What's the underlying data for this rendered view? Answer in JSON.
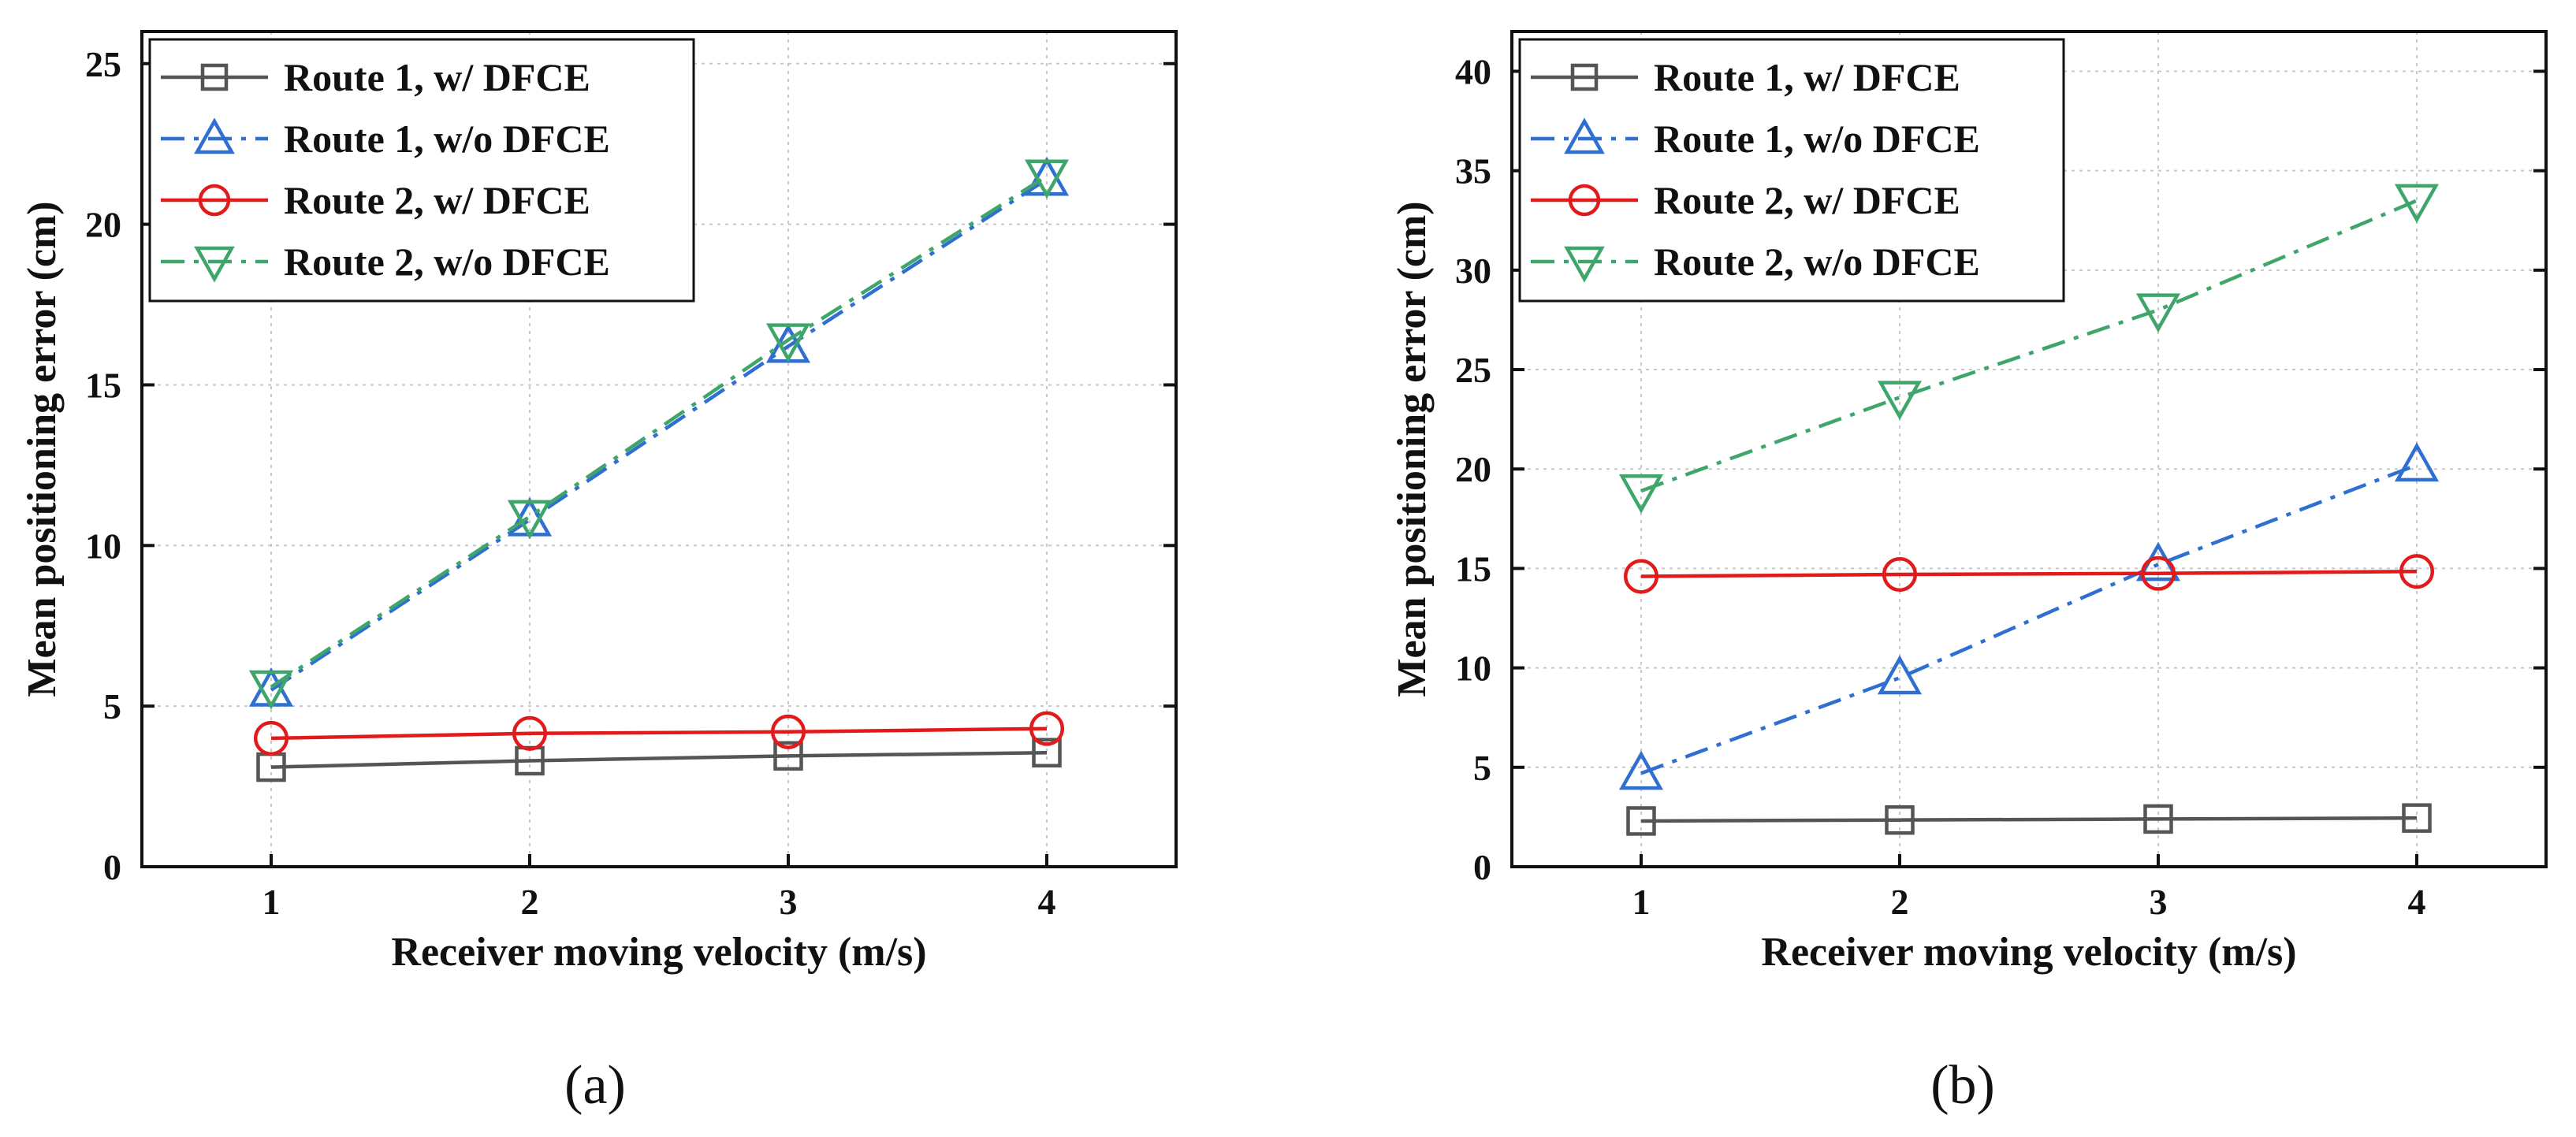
{
  "chart_data": [
    {
      "type": "line",
      "panel_label": "(a)",
      "xlabel": "Receiver moving velocity (m/s)",
      "ylabel": "Mean positioning error (cm)",
      "x": [
        1,
        2,
        3,
        4
      ],
      "xlim": [
        0.5,
        4.5
      ],
      "ylim": [
        0,
        26
      ],
      "xticks": [
        1,
        2,
        3,
        4
      ],
      "yticks": [
        0,
        5,
        10,
        15,
        20,
        25
      ],
      "grid": true,
      "legend_position": "top-left",
      "series": [
        {
          "name": "Route 1, w/   DFCE",
          "color": "#555555",
          "linestyle": "solid",
          "marker": "square",
          "values": [
            3.1,
            3.3,
            3.45,
            3.55
          ]
        },
        {
          "name": "Route 1, w/o DFCE",
          "color": "#2e6fd0",
          "linestyle": "dashdot",
          "marker": "triangle-up",
          "values": [
            5.5,
            10.8,
            16.2,
            21.4
          ]
        },
        {
          "name": "Route 2, w/   DFCE",
          "color": "#e11b1b",
          "linestyle": "solid",
          "marker": "circle",
          "values": [
            4.0,
            4.15,
            4.2,
            4.3
          ]
        },
        {
          "name": "Route 2, w/o DFCE",
          "color": "#3fa66b",
          "linestyle": "dashdot",
          "marker": "triangle-down",
          "values": [
            5.6,
            10.9,
            16.4,
            21.5
          ]
        }
      ]
    },
    {
      "type": "line",
      "panel_label": "(b)",
      "xlabel": "Receiver moving velocity (m/s)",
      "ylabel": "Mean positioning error (cm)",
      "x": [
        1,
        2,
        3,
        4
      ],
      "xlim": [
        0.5,
        4.5
      ],
      "ylim": [
        0,
        42
      ],
      "xticks": [
        1,
        2,
        3,
        4
      ],
      "yticks": [
        0,
        5,
        10,
        15,
        20,
        25,
        30,
        35,
        40
      ],
      "grid": true,
      "legend_position": "top-left",
      "series": [
        {
          "name": "Route 1, w/   DFCE",
          "color": "#555555",
          "linestyle": "solid",
          "marker": "square",
          "values": [
            2.3,
            2.35,
            2.4,
            2.45
          ]
        },
        {
          "name": "Route 1, w/o DFCE",
          "color": "#2e6fd0",
          "linestyle": "dashdot",
          "marker": "triangle-up",
          "values": [
            4.7,
            9.5,
            15.2,
            20.2
          ]
        },
        {
          "name": "Route 2, w/   DFCE",
          "color": "#e11b1b",
          "linestyle": "solid",
          "marker": "circle",
          "values": [
            14.6,
            14.7,
            14.75,
            14.85
          ]
        },
        {
          "name": "Route 2, w/o DFCE",
          "color": "#3fa66b",
          "linestyle": "dashdot",
          "marker": "triangle-down",
          "values": [
            18.9,
            23.6,
            28.0,
            33.5
          ]
        }
      ]
    }
  ]
}
